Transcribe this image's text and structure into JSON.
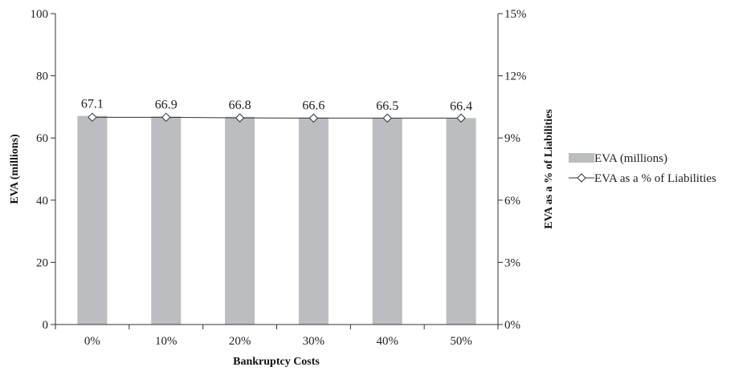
{
  "chart_data": {
    "type": "bar",
    "xlabel": "Bankruptcy Costs",
    "ylabel": "EVA (millions)",
    "y2label": "EVA as a % of Liabilities",
    "categories": [
      "0%",
      "10%",
      "20%",
      "30%",
      "40%",
      "50%"
    ],
    "ylim": [
      0,
      100
    ],
    "yticks": [
      0,
      20,
      40,
      60,
      80,
      100
    ],
    "y2lim": [
      0,
      15
    ],
    "y2ticks": [
      0,
      3,
      6,
      9,
      12,
      15
    ],
    "y2tick_labels": [
      "0%",
      "3%",
      "6%",
      "9%",
      "12%",
      "15%"
    ],
    "grid": false,
    "legend_position": "right",
    "series": [
      {
        "name": "EVA (millions)",
        "type": "bar",
        "axis": "left",
        "color": "#bcbdc0",
        "values": [
          67.1,
          66.9,
          66.8,
          66.6,
          66.5,
          66.4
        ],
        "labels": [
          "67.1",
          "66.9",
          "66.8",
          "66.6",
          "66.5",
          "66.4"
        ]
      },
      {
        "name": "EVA as a % of Liabilities",
        "type": "line",
        "axis": "right",
        "color": "#333333",
        "marker": "diamond",
        "values": [
          10.0,
          10.0,
          9.97,
          9.96,
          9.96,
          9.96
        ]
      }
    ]
  }
}
